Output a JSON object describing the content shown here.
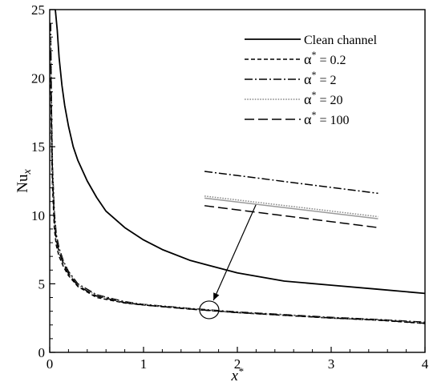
{
  "chart_data": {
    "type": "line",
    "title": "",
    "xlabel": {
      "base": "x",
      "sup": "*"
    },
    "ylabel": {
      "base": "Nu",
      "sub": "x"
    },
    "xlim": [
      0,
      4
    ],
    "ylim": [
      0,
      25
    ],
    "xticks": [
      "0",
      "1",
      "2",
      "3",
      "4"
    ],
    "yticks": [
      "0",
      "5",
      "10",
      "15",
      "20",
      "25"
    ],
    "grid": false,
    "legend_position": "top-right",
    "series": [
      {
        "name": "Clean channel",
        "dash": "solid",
        "color": "#000000",
        "x": [
          0.06,
          0.08,
          0.1,
          0.13,
          0.16,
          0.2,
          0.25,
          0.3,
          0.4,
          0.5,
          0.6,
          0.8,
          1.0,
          1.2,
          1.5,
          2.0,
          2.5,
          3.0,
          3.5,
          4.0
        ],
        "y": [
          25.0,
          23.5,
          21.5,
          19.5,
          18.0,
          16.5,
          15.0,
          14.0,
          12.5,
          11.3,
          10.3,
          9.1,
          8.2,
          7.5,
          6.7,
          5.8,
          5.2,
          4.9,
          4.6,
          4.3
        ]
      },
      {
        "name": "0.2",
        "legend_symbol": "α*",
        "dash": "short-dash",
        "color": "#000000",
        "x": [
          0.01,
          0.02,
          0.03,
          0.05,
          0.07,
          0.1,
          0.15,
          0.2,
          0.3,
          0.5,
          0.8,
          1.0,
          1.5,
          2.0,
          2.5,
          3.0,
          3.5,
          4.0
        ],
        "y": [
          20.0,
          15.0,
          12.0,
          9.0,
          7.8,
          7.0,
          6.2,
          5.6,
          4.8,
          4.0,
          3.6,
          3.45,
          3.15,
          2.9,
          2.7,
          2.5,
          2.35,
          2.1
        ]
      },
      {
        "name": "2",
        "legend_symbol": "α*",
        "dash": "dash-dot",
        "color": "#000000",
        "x": [
          0.01,
          0.02,
          0.03,
          0.05,
          0.07,
          0.1,
          0.15,
          0.2,
          0.3,
          0.5,
          0.8,
          1.0,
          1.5,
          2.0,
          2.5,
          3.0,
          3.5,
          4.0
        ],
        "y": [
          24.0,
          17.5,
          13.5,
          10.2,
          8.6,
          7.6,
          6.6,
          5.9,
          5.0,
          4.2,
          3.7,
          3.5,
          3.2,
          2.95,
          2.75,
          2.55,
          2.4,
          2.2
        ]
      },
      {
        "name": "20",
        "legend_symbol": "α*",
        "dash": "dotted",
        "color": "#8a8a8a",
        "x": [
          0.01,
          0.02,
          0.03,
          0.05,
          0.07,
          0.1,
          0.15,
          0.2,
          0.3,
          0.5,
          0.8,
          1.0,
          1.5,
          2.0,
          2.5,
          3.0,
          3.5,
          4.0
        ],
        "y": [
          23.0,
          17.0,
          13.0,
          9.8,
          8.3,
          7.4,
          6.5,
          5.8,
          4.9,
          4.15,
          3.65,
          3.48,
          3.18,
          2.92,
          2.72,
          2.52,
          2.37,
          2.15
        ]
      },
      {
        "name": "100",
        "legend_symbol": "α*",
        "dash": "long-dash",
        "color": "#000000",
        "x": [
          0.01,
          0.02,
          0.03,
          0.05,
          0.07,
          0.1,
          0.15,
          0.2,
          0.3,
          0.5,
          0.8,
          1.0,
          1.5,
          2.0,
          2.5,
          3.0,
          3.5,
          4.0
        ],
        "y": [
          22.0,
          16.5,
          12.8,
          9.6,
          8.2,
          7.3,
          6.4,
          5.75,
          4.85,
          4.1,
          3.62,
          3.46,
          3.16,
          2.91,
          2.71,
          2.51,
          2.36,
          2.12
        ]
      }
    ],
    "annotation": {
      "type": "circle-with-arrow",
      "circle_center": [
        1.7,
        3.1
      ],
      "arrow_from": [
        2.2,
        10.8
      ],
      "zoom_lines": [
        {
          "dash": "dash-dot",
          "color": "#000000",
          "x": [
            1.65,
            3.5
          ],
          "y": [
            13.2,
            11.6
          ]
        },
        {
          "dash": "dotted",
          "color": "#8a8a8a",
          "x": [
            1.65,
            3.5
          ],
          "y": [
            11.4,
            9.9
          ]
        },
        {
          "dash": "solid-gray",
          "color": "#9a9a9a",
          "x": [
            1.65,
            3.5
          ],
          "y": [
            11.25,
            9.75
          ]
        },
        {
          "dash": "long-dash",
          "color": "#000000",
          "x": [
            1.65,
            3.5
          ],
          "y": [
            10.7,
            9.1
          ]
        }
      ]
    }
  }
}
